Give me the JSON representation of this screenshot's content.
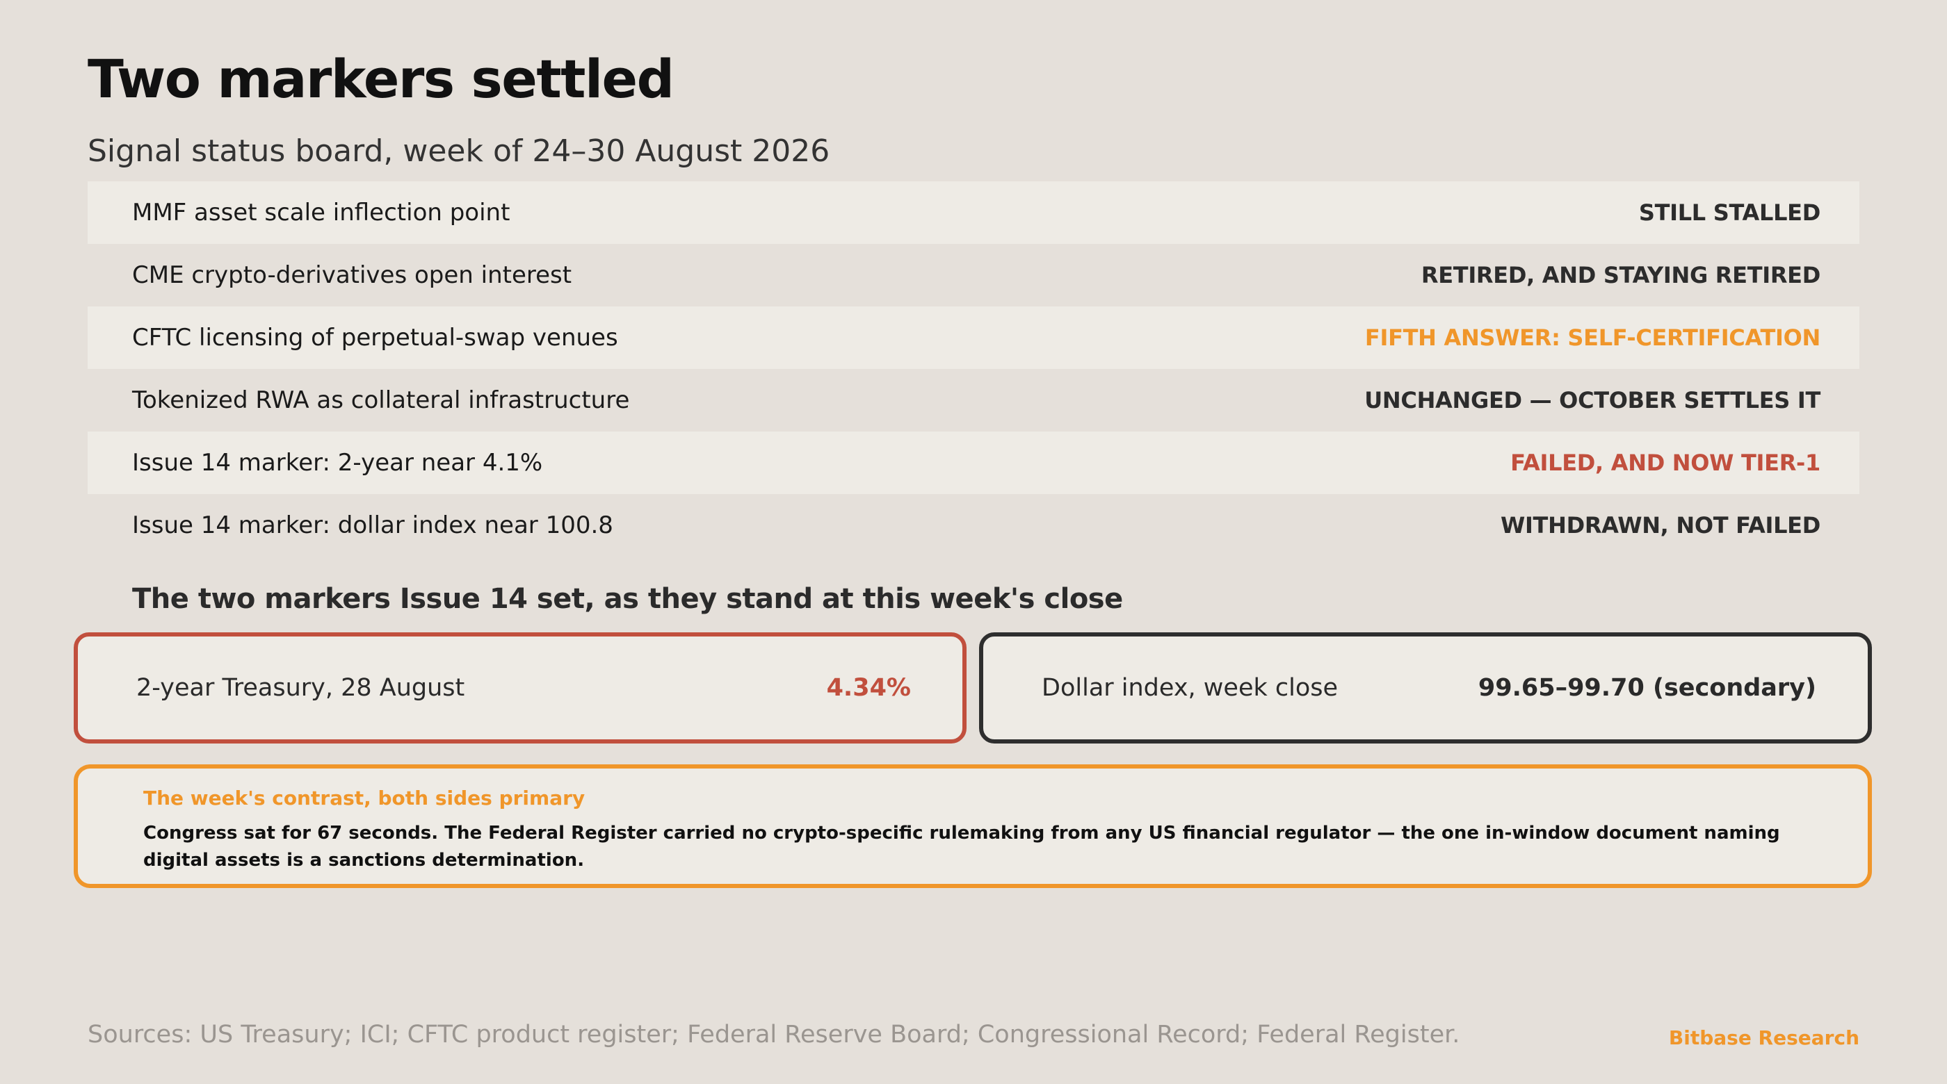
{
  "header": {
    "title": "Two markers settled",
    "subtitle": "Signal status board, week of 24–30 August 2026"
  },
  "status_rows": [
    {
      "label": "MMF asset scale inflection point",
      "status": "STILL STALLED"
    },
    {
      "label": "CME crypto-derivatives open interest",
      "status": "RETIRED, AND STAYING RETIRED"
    },
    {
      "label": "CFTC licensing of perpetual-swap venues",
      "status": "FIFTH ANSWER: SELF-CERTIFICATION"
    },
    {
      "label": "Tokenized RWA as collateral infrastructure",
      "status": "UNCHANGED — OCTOBER SETTLES IT"
    },
    {
      "label": "Issue 14 marker: 2-year near 4.1%",
      "status": "FAILED, AND NOW TIER-1"
    },
    {
      "label": "Issue 14 marker: dollar index near 100.8",
      "status": "WITHDRAWN, NOT FAILED"
    }
  ],
  "markers": {
    "heading": "The two markers Issue 14 set, as they stand at this week's close",
    "treasury": {
      "label": "2-year Treasury, 28 August",
      "value": "4.34%"
    },
    "dollar": {
      "label": "Dollar index, week close",
      "value": "99.65–99.70 (secondary)"
    }
  },
  "contrast": {
    "title": "The week's contrast, both sides primary",
    "body": "Congress sat for 67 seconds. The Federal Register carried no crypto-specific rulemaking from any US financial regulator — the one in-window document naming digital assets is a sanctions determination."
  },
  "footer": {
    "sources": "Sources: US Treasury; ICI; CFTC product register; Federal Reserve Board; Congressional Record; Federal Register.",
    "brand": "Bitbase Research"
  },
  "colors": {
    "background": "#e5e0da",
    "accent_orange": "#f0962a",
    "accent_red": "#c14f3d",
    "dark": "#2e2e2e"
  }
}
